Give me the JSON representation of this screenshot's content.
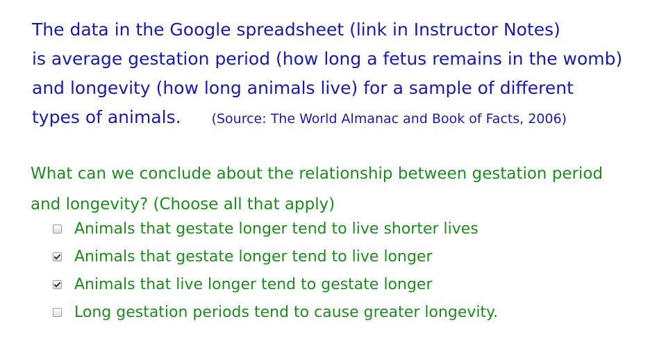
{
  "intro": {
    "lines": [
      "The data in the Google spreadsheet (link in Instructor Notes)",
      "is average gestation period (how long a fetus remains in the womb)",
      "and longevity (how long animals live) for a sample of different",
      "types of animals."
    ],
    "source": "(Source: The World Almanac and Book of Facts, 2006)"
  },
  "question": {
    "lines": [
      "What can we conclude about the relationship between gestation period",
      "and longevity? (Choose all that apply)"
    ]
  },
  "options": [
    {
      "label": "Animals that gestate longer tend to live shorter lives",
      "checked": false
    },
    {
      "label": "Animals that gestate longer tend to live longer",
      "checked": true
    },
    {
      "label": "Animals that live longer tend to gestate longer",
      "checked": true
    },
    {
      "label": "Long gestation periods tend to cause greater longevity.",
      "checked": false
    }
  ],
  "colors": {
    "intro_text": "#1a1aa8",
    "question_text": "#1f8a1f"
  }
}
